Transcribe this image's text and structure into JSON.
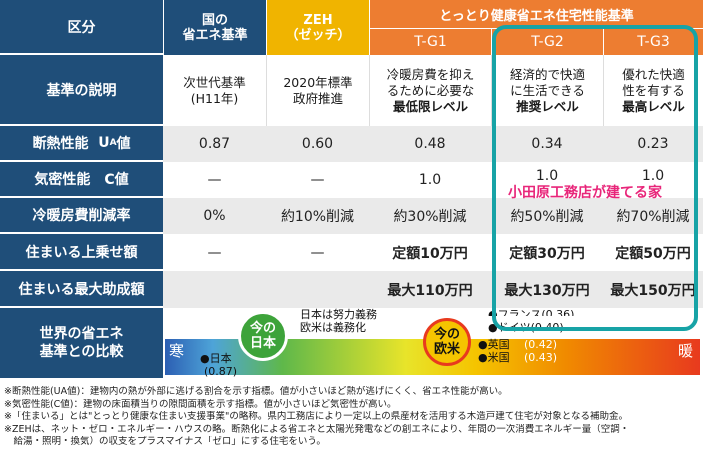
{
  "header": {
    "kubun": "区分",
    "kuni": "国の",
    "kuni2": "省エネ基準",
    "zeh": "ZEH",
    "zeh2": "（ゼッチ）",
    "heat_title": "とっとり健康省エネ住宅性能基準",
    "tg1": "T-G1",
    "tg2": "T-G2",
    "tg3": "T-G3"
  },
  "rows": {
    "desc_label": "基準の説明",
    "ua_label": "断熱性能",
    "ua_symbol": "U",
    "ua_sub": "A",
    "ua_suffix": "値",
    "c_label": "気密性能　C値",
    "cost_label": "冷暖房費削減率",
    "add_label": "住まいる上乗せ額",
    "max_label": "住まいる最大助成額",
    "world_label": "世界の省エネ",
    "world_label2": "基準との比較"
  },
  "desc": {
    "kuni": [
      "次世代基準",
      "(H11年)"
    ],
    "zeh": [
      "2020年標準",
      "政府推進"
    ],
    "tg1": [
      "冷暖房費を抑え",
      "るために必要な",
      "最低限レベル"
    ],
    "tg2": [
      "経済的で快適",
      "に生活できる",
      "推奨レベル"
    ],
    "tg3": [
      "優れた快適",
      "性を有する",
      "最高レベル"
    ]
  },
  "ua": {
    "kuni": "0.87",
    "zeh": "0.60",
    "tg1": "0.48",
    "tg2": "0.34",
    "tg3": "0.23"
  },
  "c": {
    "kuni": "—",
    "zeh": "—",
    "tg1": "1.0",
    "tg2": "1.0",
    "tg3": "1.0"
  },
  "cost": {
    "kuni": "0%",
    "zeh": "約10%削減",
    "tg1": "約30%削減",
    "tg2": "約50%削減",
    "tg3": "約70%削減"
  },
  "add": {
    "kuni": "—",
    "zeh": "—",
    "tg1": "定額10万円",
    "tg2": "定額30万円",
    "tg3": "定額50万円"
  },
  "max": {
    "tg1": "最大110万円",
    "tg2": "最大130万円",
    "tg3": "最大150万円"
  },
  "callout": "小田原工務店が建てる家",
  "world": {
    "cold": "寒",
    "warm": "暖",
    "now_japan": [
      "今の",
      "日本"
    ],
    "now_west": [
      "今の",
      "欧米"
    ],
    "note1": "日本は努力義務",
    "note2": "欧米は義務化",
    "japan": "●日本",
    "japan_val": "(0.87)",
    "france": "●フランス(0.36)",
    "germany": "●ドイツ(0.40)",
    "uk": "●英国",
    "uk_val": "(0.42)",
    "us": "●米国",
    "us_val": "(0.43)"
  },
  "notes": [
    "※断熱性能(UA値)：建物内の熱が外部に逃げる割合を示す指標。値が小さいほど熱が逃げにくく、省エネ性能が高い。",
    "※気密性能(C値)：建物の床面積当りの隙間面積を示す指標。値が小さいほど気密性が高い。",
    "※「住まいる」とは\"とっとり健康な住まい支援事業\"の略称。県内工務店により一定以上の県産材を活用する木造戸建て住宅が対象となる補助金。",
    "※ZEHは、ネット・ゼロ・エネルギー・ハウスの略。断熱化による省エネと太陽光発電などの創エネにより、年間の一次消費エネルギー量（空調・",
    "　給湯・照明・換気）の収支をプラスマイナス「ゼロ」にする住宅をいう。"
  ],
  "colors": {
    "navy": "#1f4e79",
    "zeh": "#f0b400",
    "orange": "#ed7d31",
    "teal": "#17a3a6",
    "pink": "#e8267a"
  }
}
